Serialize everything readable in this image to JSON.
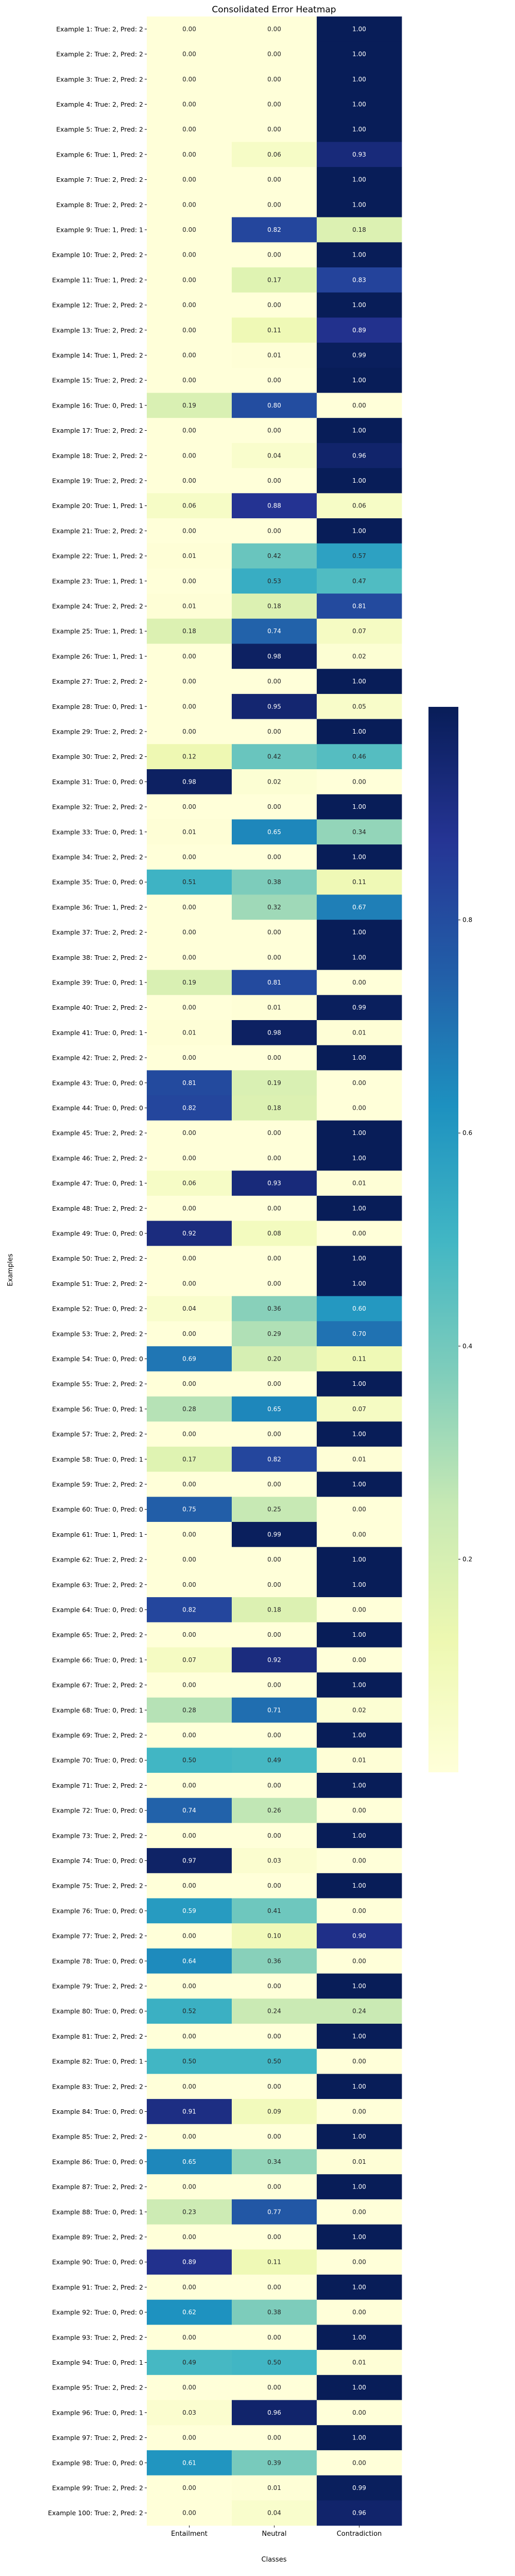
{
  "chart_data": {
    "type": "heatmap",
    "title": "Consolidated Error Heatmap",
    "xlabel": "Classes",
    "ylabel": "Examples",
    "columns": [
      "Entailment",
      "Neutral",
      "Contradiction"
    ],
    "rows": [
      {
        "label": "Example 1: True: 2, Pred: 2",
        "values": [
          0.0,
          0.0,
          1.0
        ]
      },
      {
        "label": "Example 2: True: 2, Pred: 2",
        "values": [
          0.0,
          0.0,
          1.0
        ]
      },
      {
        "label": "Example 3: True: 2, Pred: 2",
        "values": [
          0.0,
          0.0,
          1.0
        ]
      },
      {
        "label": "Example 4: True: 2, Pred: 2",
        "values": [
          0.0,
          0.0,
          1.0
        ]
      },
      {
        "label": "Example 5: True: 2, Pred: 2",
        "values": [
          0.0,
          0.0,
          1.0
        ]
      },
      {
        "label": "Example 6: True: 1, Pred: 2",
        "values": [
          0.0,
          0.06,
          0.93
        ]
      },
      {
        "label": "Example 7: True: 2, Pred: 2",
        "values": [
          0.0,
          0.0,
          1.0
        ]
      },
      {
        "label": "Example 8: True: 2, Pred: 2",
        "values": [
          0.0,
          0.0,
          1.0
        ]
      },
      {
        "label": "Example 9: True: 1, Pred: 1",
        "values": [
          0.0,
          0.82,
          0.18
        ]
      },
      {
        "label": "Example 10: True: 2, Pred: 2",
        "values": [
          0.0,
          0.0,
          1.0
        ]
      },
      {
        "label": "Example 11: True: 1, Pred: 2",
        "values": [
          0.0,
          0.17,
          0.83
        ]
      },
      {
        "label": "Example 12: True: 2, Pred: 2",
        "values": [
          0.0,
          0.0,
          1.0
        ]
      },
      {
        "label": "Example 13: True: 2, Pred: 2",
        "values": [
          0.0,
          0.11,
          0.89
        ]
      },
      {
        "label": "Example 14: True: 1, Pred: 2",
        "values": [
          0.0,
          0.01,
          0.99
        ]
      },
      {
        "label": "Example 15: True: 2, Pred: 2",
        "values": [
          0.0,
          0.0,
          1.0
        ]
      },
      {
        "label": "Example 16: True: 0, Pred: 1",
        "values": [
          0.19,
          0.8,
          0.0
        ]
      },
      {
        "label": "Example 17: True: 2, Pred: 2",
        "values": [
          0.0,
          0.0,
          1.0
        ]
      },
      {
        "label": "Example 18: True: 2, Pred: 2",
        "values": [
          0.0,
          0.04,
          0.96
        ]
      },
      {
        "label": "Example 19: True: 2, Pred: 2",
        "values": [
          0.0,
          0.0,
          1.0
        ]
      },
      {
        "label": "Example 20: True: 1, Pred: 1",
        "values": [
          0.06,
          0.88,
          0.06
        ]
      },
      {
        "label": "Example 21: True: 2, Pred: 2",
        "values": [
          0.0,
          0.0,
          1.0
        ]
      },
      {
        "label": "Example 22: True: 1, Pred: 2",
        "values": [
          0.01,
          0.42,
          0.57
        ]
      },
      {
        "label": "Example 23: True: 1, Pred: 1",
        "values": [
          0.0,
          0.53,
          0.47
        ]
      },
      {
        "label": "Example 24: True: 2, Pred: 2",
        "values": [
          0.01,
          0.18,
          0.81
        ]
      },
      {
        "label": "Example 25: True: 1, Pred: 1",
        "values": [
          0.18,
          0.74,
          0.07
        ]
      },
      {
        "label": "Example 26: True: 1, Pred: 1",
        "values": [
          0.0,
          0.98,
          0.02
        ]
      },
      {
        "label": "Example 27: True: 2, Pred: 2",
        "values": [
          0.0,
          0.0,
          1.0
        ]
      },
      {
        "label": "Example 28: True: 0, Pred: 1",
        "values": [
          0.0,
          0.95,
          0.05
        ]
      },
      {
        "label": "Example 29: True: 2, Pred: 2",
        "values": [
          0.0,
          0.0,
          1.0
        ]
      },
      {
        "label": "Example 30: True: 2, Pred: 2",
        "values": [
          0.12,
          0.42,
          0.46
        ]
      },
      {
        "label": "Example 31: True: 0, Pred: 0",
        "values": [
          0.98,
          0.02,
          0.0
        ]
      },
      {
        "label": "Example 32: True: 2, Pred: 2",
        "values": [
          0.0,
          0.0,
          1.0
        ]
      },
      {
        "label": "Example 33: True: 0, Pred: 1",
        "values": [
          0.01,
          0.65,
          0.34
        ]
      },
      {
        "label": "Example 34: True: 2, Pred: 2",
        "values": [
          0.0,
          0.0,
          1.0
        ]
      },
      {
        "label": "Example 35: True: 0, Pred: 0",
        "values": [
          0.51,
          0.38,
          0.11
        ]
      },
      {
        "label": "Example 36: True: 1, Pred: 2",
        "values": [
          0.0,
          0.32,
          0.67
        ]
      },
      {
        "label": "Example 37: True: 2, Pred: 2",
        "values": [
          0.0,
          0.0,
          1.0
        ]
      },
      {
        "label": "Example 38: True: 2, Pred: 2",
        "values": [
          0.0,
          0.0,
          1.0
        ]
      },
      {
        "label": "Example 39: True: 0, Pred: 1",
        "values": [
          0.19,
          0.81,
          0.0
        ]
      },
      {
        "label": "Example 40: True: 2, Pred: 2",
        "values": [
          0.0,
          0.01,
          0.99
        ]
      },
      {
        "label": "Example 41: True: 0, Pred: 1",
        "values": [
          0.01,
          0.98,
          0.01
        ]
      },
      {
        "label": "Example 42: True: 2, Pred: 2",
        "values": [
          0.0,
          0.0,
          1.0
        ]
      },
      {
        "label": "Example 43: True: 0, Pred: 0",
        "values": [
          0.81,
          0.19,
          0.0
        ]
      },
      {
        "label": "Example 44: True: 0, Pred: 0",
        "values": [
          0.82,
          0.18,
          0.0
        ]
      },
      {
        "label": "Example 45: True: 2, Pred: 2",
        "values": [
          0.0,
          0.0,
          1.0
        ]
      },
      {
        "label": "Example 46: True: 2, Pred: 2",
        "values": [
          0.0,
          0.0,
          1.0
        ]
      },
      {
        "label": "Example 47: True: 0, Pred: 1",
        "values": [
          0.06,
          0.93,
          0.01
        ]
      },
      {
        "label": "Example 48: True: 2, Pred: 2",
        "values": [
          0.0,
          0.0,
          1.0
        ]
      },
      {
        "label": "Example 49: True: 0, Pred: 0",
        "values": [
          0.92,
          0.08,
          0.0
        ]
      },
      {
        "label": "Example 50: True: 2, Pred: 2",
        "values": [
          0.0,
          0.0,
          1.0
        ]
      },
      {
        "label": "Example 51: True: 2, Pred: 2",
        "values": [
          0.0,
          0.0,
          1.0
        ]
      },
      {
        "label": "Example 52: True: 0, Pred: 2",
        "values": [
          0.04,
          0.36,
          0.6
        ]
      },
      {
        "label": "Example 53: True: 2, Pred: 2",
        "values": [
          0.0,
          0.29,
          0.7
        ]
      },
      {
        "label": "Example 54: True: 0, Pred: 0",
        "values": [
          0.69,
          0.2,
          0.11
        ]
      },
      {
        "label": "Example 55: True: 2, Pred: 2",
        "values": [
          0.0,
          0.0,
          1.0
        ]
      },
      {
        "label": "Example 56: True: 0, Pred: 1",
        "values": [
          0.28,
          0.65,
          0.07
        ]
      },
      {
        "label": "Example 57: True: 2, Pred: 2",
        "values": [
          0.0,
          0.0,
          1.0
        ]
      },
      {
        "label": "Example 58: True: 0, Pred: 1",
        "values": [
          0.17,
          0.82,
          0.01
        ]
      },
      {
        "label": "Example 59: True: 2, Pred: 2",
        "values": [
          0.0,
          0.0,
          1.0
        ]
      },
      {
        "label": "Example 60: True: 0, Pred: 0",
        "values": [
          0.75,
          0.25,
          0.0
        ]
      },
      {
        "label": "Example 61: True: 1, Pred: 1",
        "values": [
          0.0,
          0.99,
          0.0
        ]
      },
      {
        "label": "Example 62: True: 2, Pred: 2",
        "values": [
          0.0,
          0.0,
          1.0
        ]
      },
      {
        "label": "Example 63: True: 2, Pred: 2",
        "values": [
          0.0,
          0.0,
          1.0
        ]
      },
      {
        "label": "Example 64: True: 0, Pred: 0",
        "values": [
          0.82,
          0.18,
          0.0
        ]
      },
      {
        "label": "Example 65: True: 2, Pred: 2",
        "values": [
          0.0,
          0.0,
          1.0
        ]
      },
      {
        "label": "Example 66: True: 0, Pred: 1",
        "values": [
          0.07,
          0.92,
          0.0
        ]
      },
      {
        "label": "Example 67: True: 2, Pred: 2",
        "values": [
          0.0,
          0.0,
          1.0
        ]
      },
      {
        "label": "Example 68: True: 0, Pred: 1",
        "values": [
          0.28,
          0.71,
          0.02
        ]
      },
      {
        "label": "Example 69: True: 2, Pred: 2",
        "values": [
          0.0,
          0.0,
          1.0
        ]
      },
      {
        "label": "Example 70: True: 0, Pred: 0",
        "values": [
          0.5,
          0.49,
          0.01
        ]
      },
      {
        "label": "Example 71: True: 2, Pred: 2",
        "values": [
          0.0,
          0.0,
          1.0
        ]
      },
      {
        "label": "Example 72: True: 0, Pred: 0",
        "values": [
          0.74,
          0.26,
          0.0
        ]
      },
      {
        "label": "Example 73: True: 2, Pred: 2",
        "values": [
          0.0,
          0.0,
          1.0
        ]
      },
      {
        "label": "Example 74: True: 0, Pred: 0",
        "values": [
          0.97,
          0.03,
          0.0
        ]
      },
      {
        "label": "Example 75: True: 2, Pred: 2",
        "values": [
          0.0,
          0.0,
          1.0
        ]
      },
      {
        "label": "Example 76: True: 0, Pred: 0",
        "values": [
          0.59,
          0.41,
          0.0
        ]
      },
      {
        "label": "Example 77: True: 2, Pred: 2",
        "values": [
          0.0,
          0.1,
          0.9
        ]
      },
      {
        "label": "Example 78: True: 0, Pred: 0",
        "values": [
          0.64,
          0.36,
          0.0
        ]
      },
      {
        "label": "Example 79: True: 2, Pred: 2",
        "values": [
          0.0,
          0.0,
          1.0
        ]
      },
      {
        "label": "Example 80: True: 0, Pred: 0",
        "values": [
          0.52,
          0.24,
          0.24
        ]
      },
      {
        "label": "Example 81: True: 2, Pred: 2",
        "values": [
          0.0,
          0.0,
          1.0
        ]
      },
      {
        "label": "Example 82: True: 0, Pred: 1",
        "values": [
          0.5,
          0.5,
          0.0
        ]
      },
      {
        "label": "Example 83: True: 2, Pred: 2",
        "values": [
          0.0,
          0.0,
          1.0
        ]
      },
      {
        "label": "Example 84: True: 0, Pred: 0",
        "values": [
          0.91,
          0.09,
          0.0
        ]
      },
      {
        "label": "Example 85: True: 2, Pred: 2",
        "values": [
          0.0,
          0.0,
          1.0
        ]
      },
      {
        "label": "Example 86: True: 0, Pred: 0",
        "values": [
          0.65,
          0.34,
          0.01
        ]
      },
      {
        "label": "Example 87: True: 2, Pred: 2",
        "values": [
          0.0,
          0.0,
          1.0
        ]
      },
      {
        "label": "Example 88: True: 0, Pred: 1",
        "values": [
          0.23,
          0.77,
          0.0
        ]
      },
      {
        "label": "Example 89: True: 2, Pred: 2",
        "values": [
          0.0,
          0.0,
          1.0
        ]
      },
      {
        "label": "Example 90: True: 0, Pred: 0",
        "values": [
          0.89,
          0.11,
          0.0
        ]
      },
      {
        "label": "Example 91: True: 2, Pred: 2",
        "values": [
          0.0,
          0.0,
          1.0
        ]
      },
      {
        "label": "Example 92: True: 0, Pred: 0",
        "values": [
          0.62,
          0.38,
          0.0
        ]
      },
      {
        "label": "Example 93: True: 2, Pred: 2",
        "values": [
          0.0,
          0.0,
          1.0
        ]
      },
      {
        "label": "Example 94: True: 0, Pred: 1",
        "values": [
          0.49,
          0.5,
          0.01
        ]
      },
      {
        "label": "Example 95: True: 2, Pred: 2",
        "values": [
          0.0,
          0.0,
          1.0
        ]
      },
      {
        "label": "Example 96: True: 0, Pred: 1",
        "values": [
          0.03,
          0.96,
          0.0
        ]
      },
      {
        "label": "Example 97: True: 2, Pred: 2",
        "values": [
          0.0,
          0.0,
          1.0
        ]
      },
      {
        "label": "Example 98: True: 0, Pred: 0",
        "values": [
          0.61,
          0.39,
          0.0
        ]
      },
      {
        "label": "Example 99: True: 2, Pred: 2",
        "values": [
          0.0,
          0.01,
          0.99
        ]
      },
      {
        "label": "Example 100: True: 2, Pred: 2",
        "values": [
          0.0,
          0.04,
          0.96
        ]
      }
    ],
    "value_format": "0.00",
    "vlim": [
      0,
      1
    ],
    "colormap": "YlGnBu",
    "colormap_stops": [
      "#ffffd9",
      "#edf8b1",
      "#c7e9b4",
      "#7fcdbb",
      "#41b6c4",
      "#1d91c0",
      "#225ea8",
      "#253494",
      "#081d58"
    ],
    "colorbar": {
      "ticks": [
        0.2,
        0.4,
        0.6,
        0.8
      ],
      "tick_labels": [
        "0.2",
        "0.4",
        "0.6",
        "0.8"
      ],
      "placement": "right"
    },
    "grid": false
  }
}
